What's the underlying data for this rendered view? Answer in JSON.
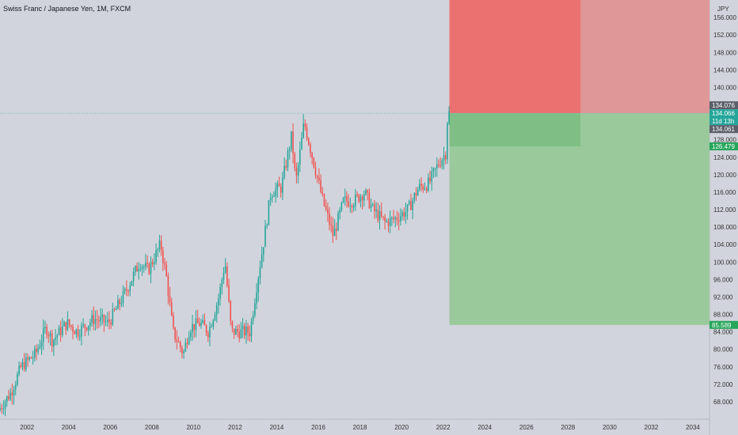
{
  "header": {
    "title": "Swiss Franc / Japanese Yen, 1M, FXCM",
    "currency_label": "JPY"
  },
  "colors": {
    "background": "#d1d4dc",
    "up": "#26a69a",
    "down": "#ef5350",
    "risk_zone": "#eb7070",
    "risk_zone_light": "#df9797",
    "reward_zone": "#9ac99c",
    "reward_zone_dark": "#7fbf85",
    "price_line": "#7ab8c0",
    "label_dark": "#5b5f69",
    "label_green": "#26a65b"
  },
  "chart_data": {
    "type": "candlestick",
    "title": "Swiss Franc / Japanese Yen, 1M, FXCM",
    "x_range": [
      2000.7,
      2034.8
    ],
    "y_range": [
      64,
      160
    ],
    "y_ticks": [
      68,
      72,
      76,
      80,
      84,
      88,
      92,
      96,
      100,
      104,
      108,
      112,
      116,
      120,
      124,
      128,
      132,
      136,
      140,
      144,
      148,
      152,
      156
    ],
    "y_tick_labels": [
      "68.000",
      "72.000",
      "76.000",
      "80.000",
      "84.000",
      "88.000",
      "92.000",
      "96.000",
      "100.000",
      "104.000",
      "108.000",
      "112.000",
      "116.000",
      "120.000",
      "124.000",
      "128.000",
      "132.000",
      "136.000",
      "140.000",
      "144.000",
      "148.000",
      "152.000",
      "156.000"
    ],
    "x_ticks": [
      2002,
      2004,
      2006,
      2008,
      2010,
      2012,
      2014,
      2016,
      2018,
      2020,
      2022,
      2024,
      2026,
      2028,
      2030,
      2032,
      2034
    ],
    "x_tick_labels": [
      "2002",
      "2004",
      "2006",
      "2008",
      "2010",
      "2012",
      "2014",
      "2016",
      "2018",
      "2020",
      "2022",
      "2024",
      "2026",
      "2028",
      "2030",
      "2032",
      "2034"
    ],
    "anchors": [
      [
        2000.7,
        66
      ],
      [
        2001.3,
        70
      ],
      [
        2001.8,
        76
      ],
      [
        2002.5,
        79
      ],
      [
        2003.0,
        85
      ],
      [
        2003.3,
        82
      ],
      [
        2004.0,
        86
      ],
      [
        2004.5,
        84
      ],
      [
        2005.3,
        87
      ],
      [
        2006.0,
        86
      ],
      [
        2006.8,
        93
      ],
      [
        2007.5,
        100
      ],
      [
        2007.9,
        98
      ],
      [
        2008.5,
        104
      ],
      [
        2008.8,
        96
      ],
      [
        2009.1,
        84
      ],
      [
        2009.6,
        79
      ],
      [
        2009.9,
        85
      ],
      [
        2010.4,
        86
      ],
      [
        2010.8,
        84
      ],
      [
        2011.3,
        92
      ],
      [
        2011.6,
        100
      ],
      [
        2011.9,
        84
      ],
      [
        2012.4,
        84
      ],
      [
        2012.8,
        84
      ],
      [
        2013.1,
        94
      ],
      [
        2013.5,
        106
      ],
      [
        2013.8,
        116
      ],
      [
        2014.3,
        117
      ],
      [
        2014.8,
        129
      ],
      [
        2015.0,
        118
      ],
      [
        2015.4,
        132
      ],
      [
        2015.9,
        122
      ],
      [
        2016.3,
        114
      ],
      [
        2016.8,
        106
      ],
      [
        2017.3,
        114
      ],
      [
        2017.8,
        114
      ],
      [
        2018.3,
        116
      ],
      [
        2018.7,
        112
      ],
      [
        2019.3,
        109
      ],
      [
        2019.8,
        110
      ],
      [
        2020.4,
        112
      ],
      [
        2020.9,
        117
      ],
      [
        2021.4,
        118
      ],
      [
        2021.8,
        122
      ],
      [
        2022.2,
        125
      ],
      [
        2022.3,
        134.06
      ]
    ],
    "last_price": 134.066,
    "last_price_label": "134.066",
    "countdown": "11d 13h",
    "position": {
      "type": "long",
      "entry": 134.061,
      "stop_loss": 160,
      "take_profit": 85.589,
      "start_x": 2022.3,
      "end_x": 2034.8,
      "inner_end_x": 2028.6,
      "inner_bottom": 126.479
    },
    "price_labels": [
      {
        "value": 134.076,
        "text": "134.076",
        "style": "dark"
      },
      {
        "value": 134.066,
        "text": "134.066",
        "style": "up"
      },
      {
        "value": 134.061,
        "text": "134.061",
        "style": "dark"
      },
      {
        "value": 126.479,
        "text": "126.479",
        "style": "green"
      },
      {
        "value": 85.589,
        "text": "85.589",
        "style": "green"
      }
    ]
  }
}
